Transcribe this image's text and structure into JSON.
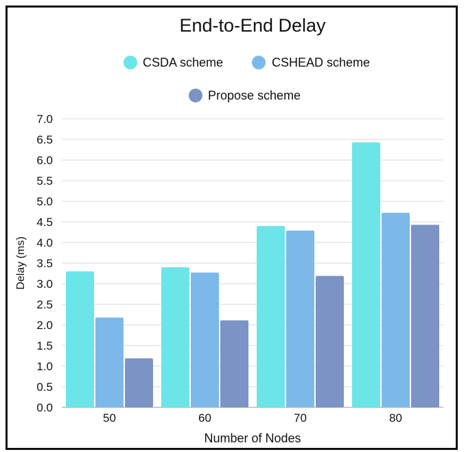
{
  "chart_data": {
    "type": "bar",
    "title": "End-to-End Delay",
    "xlabel": "Number of Nodes",
    "ylabel": "Delay (ms)",
    "categories": [
      "50",
      "60",
      "70",
      "80"
    ],
    "ylim": [
      0,
      7
    ],
    "yticks": [
      "0.0",
      "0.5",
      "1.0",
      "1.5",
      "2.0",
      "2.5",
      "3.0",
      "3.5",
      "4.0",
      "4.5",
      "5.0",
      "5.5",
      "6.0",
      "6.5",
      "7.0"
    ],
    "grid": true,
    "legend_position": "top",
    "series": [
      {
        "name": "CSDA scheme",
        "color": "#6ce5e8",
        "values": [
          3.3,
          3.4,
          4.4,
          6.43
        ]
      },
      {
        "name": "CSHEAD scheme",
        "color": "#7db9e8",
        "values": [
          2.18,
          3.27,
          4.29,
          4.72
        ]
      },
      {
        "name": "Propose scheme",
        "color": "#7b93c5",
        "values": [
          1.19,
          2.11,
          3.19,
          4.43
        ]
      }
    ]
  }
}
